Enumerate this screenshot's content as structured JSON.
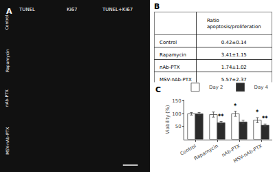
{
  "chart_data": [
    {
      "type": "image",
      "title": "A",
      "column_labels": [
        "TUNEL",
        "Ki67",
        "TUNEL+Ki67"
      ],
      "row_labels": [
        "Control",
        "Rapamycin",
        "nAb-PTX",
        "MSV-nAb-PTX"
      ]
    },
    {
      "type": "table",
      "title": "B",
      "rows": [
        [
          "",
          "Ratio apoptosis/proliferation"
        ],
        [
          "Control",
          "0.42±0.14"
        ],
        [
          "Rapamycin",
          "3.41±1.15"
        ],
        [
          "nAb-PTX",
          "1.74±1.02"
        ],
        [
          "MSV-nAb-PTX",
          "5.57±2.37"
        ]
      ]
    },
    {
      "type": "bar",
      "title": "C",
      "categories": [
        "Control",
        "Rapamycin",
        "nAb-PTX",
        "MSV-nAb-PTX"
      ],
      "series": [
        {
          "name": "Day 2",
          "color": "#ffffff",
          "values": [
            100,
            97,
            100,
            75
          ],
          "errors": [
            5,
            10,
            10,
            10
          ]
        },
        {
          "name": "Day 4",
          "color": "#2b2b2b",
          "values": [
            100,
            65,
            68,
            55
          ],
          "errors": [
            5,
            5,
            7,
            5
          ]
        }
      ],
      "ylabel": "Viability (%)",
      "ylim": [
        0,
        155
      ],
      "yticks": [
        50,
        100,
        150
      ],
      "grid": false,
      "legend": "upper right",
      "annotations": [
        {
          "category": "Rapamycin",
          "series": "Day 4",
          "text": "**"
        },
        {
          "category": "nAb-PTX",
          "series": "Day 2",
          "text": "*"
        },
        {
          "category": "MSV-nAb-PTX",
          "series": "Day 2",
          "text": "*"
        },
        {
          "category": "MSV-nAb-PTX",
          "series": "Day 4",
          "text": "**"
        }
      ]
    }
  ]
}
